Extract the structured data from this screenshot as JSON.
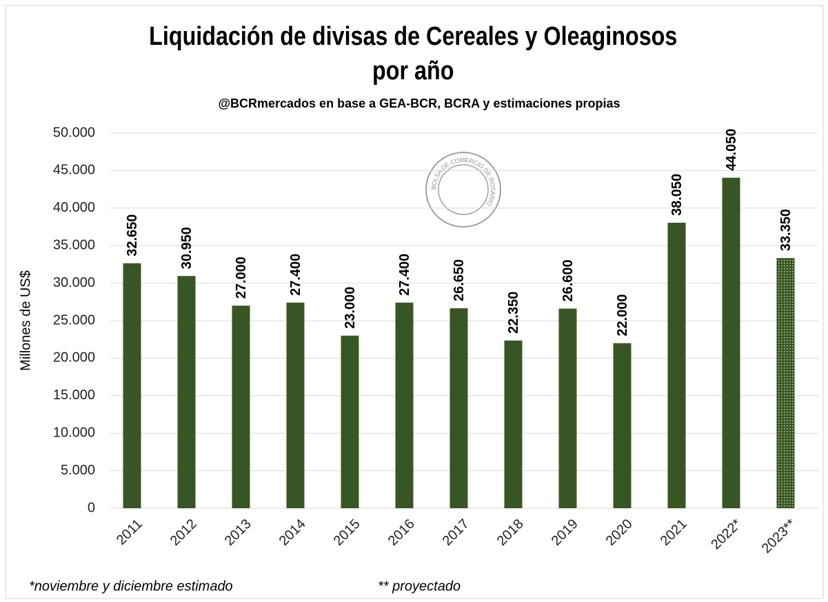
{
  "chart_data": {
    "type": "bar",
    "title": [
      "Liquidación de divisas de Cereales y Oleaginosos",
      "por año"
    ],
    "subtitle": "@BCRmercados en base a GEA-BCR,  BCRA y estimaciones propias",
    "y_label": "Millones de US$",
    "logo": "BOLSA DE COMERCIO DE ROSARIO",
    "categories": [
      "2011",
      "2012",
      "2013",
      "2014",
      "2015",
      "2016",
      "2017",
      "2018",
      "2019",
      "2020",
      "2021",
      "2022*",
      "2023**"
    ],
    "values": [
      32650,
      30950,
      27000,
      27400,
      23000,
      27400,
      26650,
      22350,
      26600,
      22000,
      38050,
      44050,
      33350
    ],
    "value_labels": [
      "32.650",
      "30.950",
      "27.000",
      "27.400",
      "23.000",
      "27.400",
      "26.650",
      "22.350",
      "26.600",
      "22.000",
      "38.050",
      "44.050",
      "33.350"
    ],
    "bar_styles": [
      "solid",
      "solid",
      "solid",
      "solid",
      "solid",
      "solid",
      "solid",
      "solid",
      "solid",
      "solid",
      "solid",
      "solid",
      "dotted"
    ],
    "color": "#375623",
    "ylim": [
      0,
      50000
    ],
    "yticks": [
      0,
      {
        "value": 5000,
        "label": "5.000"
      },
      {
        "value": 10000,
        "label": "10.000"
      },
      {
        "value": 15000,
        "label": "15.000"
      },
      {
        "value": 20000,
        "label": "20.000"
      },
      {
        "value": 25000,
        "label": "25.000"
      },
      {
        "value": 30000,
        "label": "30.000"
      },
      {
        "value": 35000,
        "label": "35.000"
      },
      {
        "value": 40000,
        "label": "40.000"
      },
      {
        "value": 45000,
        "label": "45.000"
      },
      {
        "value": 50000,
        "label": "50.000"
      }
    ],
    "grid": true,
    "footnotes": [
      "*noviembre y diciembre estimado",
      "** proyectado"
    ]
  }
}
